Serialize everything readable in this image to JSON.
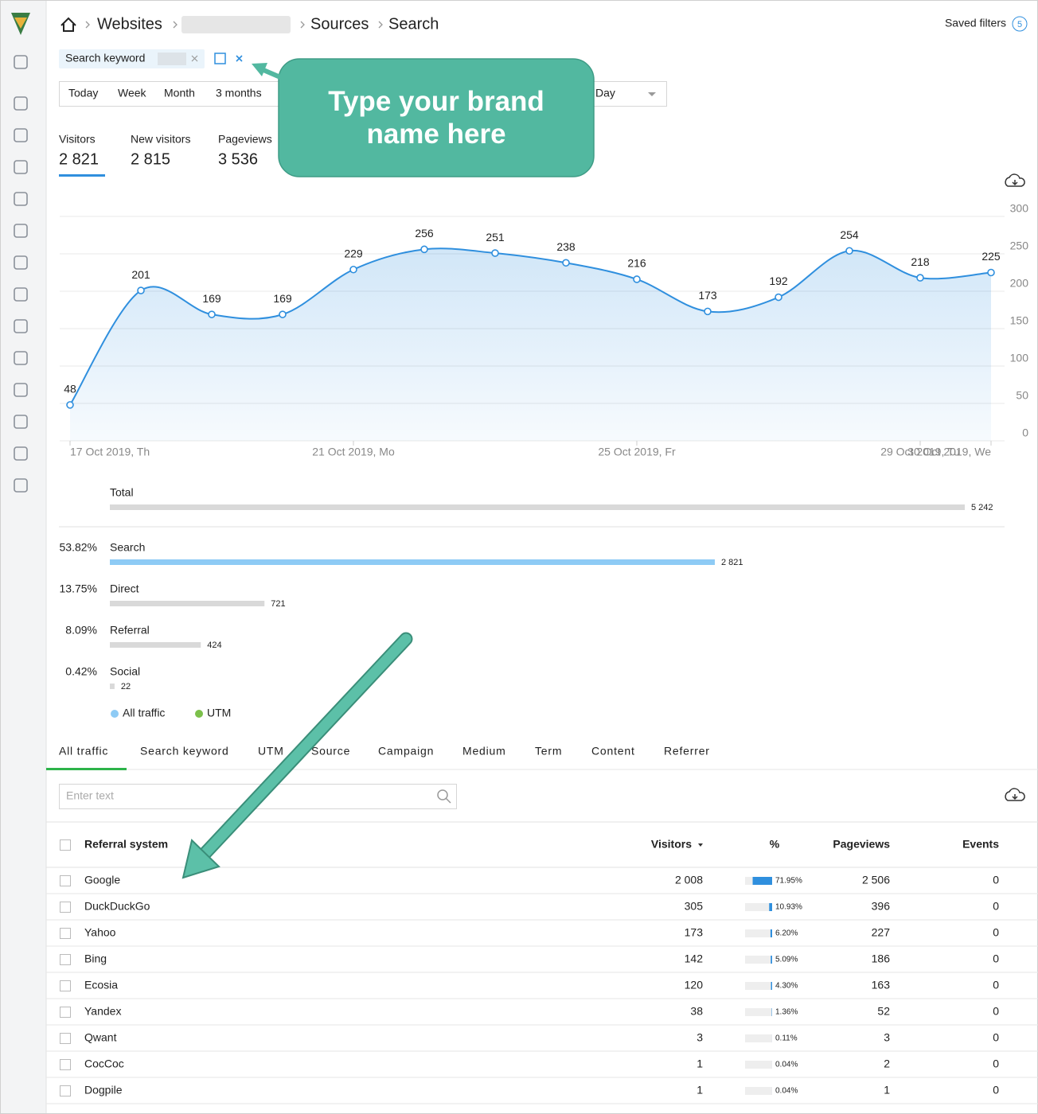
{
  "header": {
    "breadcrumb": [
      "Websites",
      "Sources",
      "Search"
    ],
    "saved_filters": "Saved filters",
    "saved_filters_count": "5"
  },
  "filter": {
    "label": "Search keyword"
  },
  "periods": [
    "Today",
    "Week",
    "Month",
    "3 months"
  ],
  "granularity": "Day",
  "annotation": {
    "text": "Type your brand name here"
  },
  "metrics": [
    {
      "label": "Visitors",
      "value": "2 821"
    },
    {
      "label": "New visitors",
      "value": "2 815"
    },
    {
      "label": "Pageviews",
      "value": "3 536"
    }
  ],
  "chart_data": {
    "type": "line",
    "categories": [
      "17 Oct 2019, Th",
      null,
      null,
      null,
      "21 Oct 2019, Mo",
      null,
      null,
      null,
      "25 Oct 2019, Fr",
      null,
      null,
      null,
      "29 Oct 2019, Tu",
      "30 Oct 2019, We"
    ],
    "series": [
      {
        "color": "#2f8fde",
        "values": [
          48,
          201,
          169,
          169,
          229,
          256,
          251,
          238,
          216,
          173,
          192,
          254,
          218,
          225
        ]
      }
    ],
    "ylim": [
      0,
      300
    ],
    "yticks": [
      0,
      50,
      100,
      150,
      200,
      250,
      300
    ],
    "grid": true
  },
  "sources": {
    "total": {
      "label": "Total",
      "value": 5242,
      "value_label": "5 242",
      "color": "#d9d9d9"
    },
    "rows": [
      {
        "share": "53.82%",
        "label": "Search",
        "value": 2821,
        "value_label": "2 821",
        "color": "#8ecbf5"
      },
      {
        "share": "13.75%",
        "label": "Direct",
        "value": 721,
        "value_label": "721",
        "color": "#d9d9d9"
      },
      {
        "share": "8.09%",
        "label": "Referral",
        "value": 424,
        "value_label": "424",
        "color": "#d9d9d9"
      },
      {
        "share": "0.42%",
        "label": "Social",
        "value": 22,
        "value_label": "22",
        "color": "#d9d9d9"
      }
    ],
    "legend": [
      {
        "name": "All traffic",
        "color": "#8ecbf5"
      },
      {
        "name": "UTM",
        "color": "#7cc04b"
      }
    ]
  },
  "tabs": [
    "All traffic",
    "Search keyword",
    "UTM",
    "Source",
    "Campaign",
    "Medium",
    "Term",
    "Content",
    "Referrer"
  ],
  "search_placeholder": "Enter text",
  "table": {
    "headers": [
      "Referral system",
      "Visitors",
      "%",
      "Pageviews",
      "Events"
    ],
    "share_color": "#2f8fde",
    "rows": [
      {
        "name": "Google",
        "visitors": "2 008",
        "share": 71.95,
        "share_label": "71.95%",
        "pageviews": "2 506",
        "events": "0"
      },
      {
        "name": "DuckDuckGo",
        "visitors": "305",
        "share": 10.93,
        "share_label": "10.93%",
        "pageviews": "396",
        "events": "0"
      },
      {
        "name": "Yahoo",
        "visitors": "173",
        "share": 6.2,
        "share_label": "6.20%",
        "pageviews": "227",
        "events": "0"
      },
      {
        "name": "Bing",
        "visitors": "142",
        "share": 5.09,
        "share_label": "5.09%",
        "pageviews": "186",
        "events": "0"
      },
      {
        "name": "Ecosia",
        "visitors": "120",
        "share": 4.3,
        "share_label": "4.30%",
        "pageviews": "163",
        "events": "0"
      },
      {
        "name": "Yandex",
        "visitors": "38",
        "share": 1.36,
        "share_label": "1.36%",
        "pageviews": "52",
        "events": "0"
      },
      {
        "name": "Qwant",
        "visitors": "3",
        "share": 0.11,
        "share_label": "0.11%",
        "pageviews": "3",
        "events": "0"
      },
      {
        "name": "CocCoc",
        "visitors": "1",
        "share": 0.04,
        "share_label": "0.04%",
        "pageviews": "2",
        "events": "0"
      },
      {
        "name": "Dogpile",
        "visitors": "1",
        "share": 0.04,
        "share_label": "0.04%",
        "pageviews": "1",
        "events": "0"
      }
    ]
  }
}
